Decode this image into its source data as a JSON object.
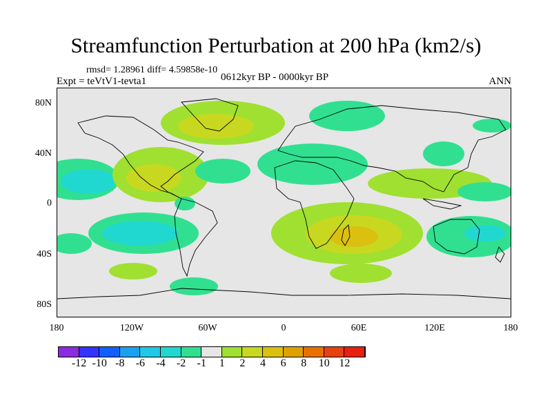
{
  "title": "Streamfunction Perturbation at 200 hPa (km2/s)",
  "stats": "rmsd= 1.28961 diff= 4.59858e-10",
  "experiment": "Expt = teVtV1-tevta1",
  "period": "0612kyr BP - 0000kyr BP",
  "season": "ANN",
  "axes": {
    "y_ticks": [
      "80N",
      "40N",
      "0",
      "40S",
      "80S"
    ],
    "x_ticks": [
      "180",
      "120W",
      "60W",
      "0",
      "60E",
      "120E",
      "180"
    ]
  },
  "colorbar": {
    "colors": [
      "#8a2be2",
      "#3333ff",
      "#1060ff",
      "#1aa0f0",
      "#20c8e8",
      "#20d8d0",
      "#30e090",
      "#e6e6e6",
      "#a0e030",
      "#c8d820",
      "#dcc010",
      "#e0a000",
      "#e87000",
      "#e84010",
      "#e82010"
    ],
    "labels": [
      "-12",
      "-10",
      "-8",
      "-6",
      "-4",
      "-2",
      "-1",
      "1",
      "2",
      "4",
      "6",
      "8",
      "10",
      "12"
    ]
  }
}
